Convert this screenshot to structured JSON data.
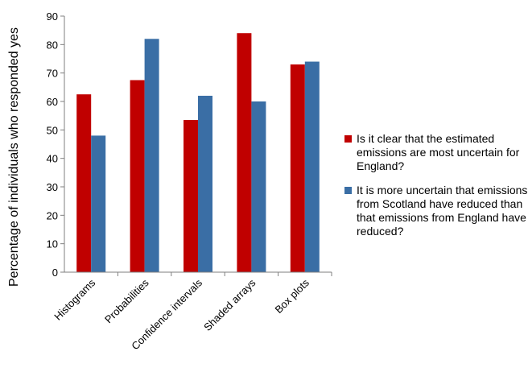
{
  "chart_data": {
    "type": "bar",
    "categories": [
      "Histograms",
      "Probabilities",
      "Confidence intervals",
      "Shaded arrays",
      "Box plots"
    ],
    "series": [
      {
        "name": "Is it clear that the estimated emissions are most uncertain for England?",
        "color": "#c00000",
        "values": [
          62.5,
          67.5,
          53.5,
          84,
          73
        ]
      },
      {
        "name": "It is more uncertain that emissions from Scotland have reduced than that emissions from England have reduced?",
        "color": "#3a6ea5",
        "values": [
          48,
          82,
          62,
          60,
          74
        ]
      }
    ],
    "title": "",
    "xlabel": "",
    "ylabel": "Percentage of individuals who responded yes",
    "ylim": [
      0,
      90
    ],
    "yticks": [
      0,
      10,
      20,
      30,
      40,
      50,
      60,
      70,
      80,
      90
    ],
    "grid": false,
    "legend": "right"
  }
}
